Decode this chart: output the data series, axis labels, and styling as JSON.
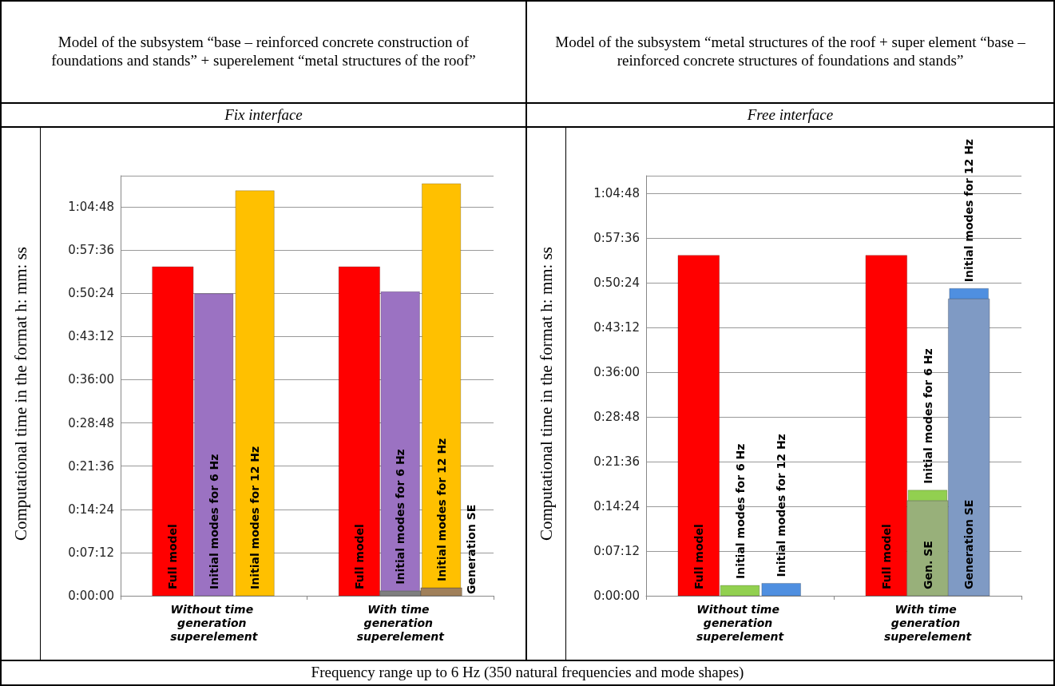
{
  "chart_data": [
    {
      "type": "bar",
      "title": "Model of the subsystem “base – reinforced concrete construction of foundations and stands” + superelement “metal structures of the roof”",
      "subtitle": "Fix interface",
      "ylabel": "Computational time in the format h: mm: ss",
      "annotations": [
        "Frequency range up to 6 Hz (350 natural frequencies and mode shapes)"
      ],
      "categories": [
        "Without time generation superelement",
        "With time generation superelement"
      ],
      "series": [
        {
          "name": "Full model",
          "color": "#ff0000",
          "values": [
            3290,
            3290
          ]
        },
        {
          "color": "#7f7f7f",
          "values": [
            null,
            50
          ]
        },
        {
          "name": "Initial modes for 6 Hz",
          "color": "#9b72c2",
          "values": [
            3020,
            2990
          ],
          "base": [
            0,
            50
          ]
        },
        {
          "name": "Generation SE",
          "color": "#a0805a",
          "values": [
            null,
            80
          ]
        },
        {
          "name": "Initial modes for 12 Hz",
          "color": "#ffc000",
          "values": [
            4050,
            4040
          ],
          "base": [
            0,
            80
          ]
        }
      ],
      "ylim": [
        0,
        4200
      ],
      "yticks": [
        {
          "value": 0,
          "label": "0:00:00"
        },
        {
          "value": 432,
          "label": "0:07:12"
        },
        {
          "value": 864,
          "label": "0:14:24"
        },
        {
          "value": 1296,
          "label": "0:21:36"
        },
        {
          "value": 1728,
          "label": "0:28:48"
        },
        {
          "value": 2160,
          "label": "0:36:00"
        },
        {
          "value": 2592,
          "label": "0:43:12"
        },
        {
          "value": 3024,
          "label": "0:50:24"
        },
        {
          "value": 3456,
          "label": "0:57:36"
        },
        {
          "value": 3888,
          "label": "1:04:48"
        }
      ],
      "grid": "y",
      "legend": false
    },
    {
      "type": "bar",
      "title": "Model of the subsystem “metal structures of the roof + super element “base – reinforced concrete structures of foundations and stands”",
      "subtitle": "Free interface",
      "ylabel": "Computational time in the format h: mm: ss",
      "categories": [
        "Without time generation superelement",
        "With time generation superelement"
      ],
      "series": [
        {
          "name": "Full model",
          "color": "#ff0000",
          "values": [
            3290,
            3290
          ]
        },
        {
          "name": "Gen. SE",
          "color": "#98b07a",
          "values": [
            null,
            920
          ]
        },
        {
          "name": "Initial modes for 6 Hz",
          "color": "#92d050",
          "values": [
            100,
            100
          ],
          "base": [
            0,
            920
          ]
        },
        {
          "name": "Generation SE",
          "color": "#7f9ac4",
          "values": [
            null,
            2870
          ]
        },
        {
          "name": "Initial modes for 12 Hz",
          "color": "#4f8fe0",
          "values": [
            120,
            100
          ],
          "base": [
            0,
            2870
          ]
        }
      ],
      "ylim": [
        0,
        4060
      ],
      "yticks": [
        {
          "value": 0,
          "label": "0:00:00"
        },
        {
          "value": 432,
          "label": "0:07:12"
        },
        {
          "value": 864,
          "label": "0:14:24"
        },
        {
          "value": 1296,
          "label": "0:21:36"
        },
        {
          "value": 1728,
          "label": "0:28:48"
        },
        {
          "value": 2160,
          "label": "0:36:00"
        },
        {
          "value": 2592,
          "label": "0:43:12"
        },
        {
          "value": 3024,
          "label": "0:50:24"
        },
        {
          "value": 3456,
          "label": "0:57:36"
        },
        {
          "value": 3888,
          "label": "1:04:48"
        }
      ],
      "grid": "y",
      "legend": false
    }
  ]
}
